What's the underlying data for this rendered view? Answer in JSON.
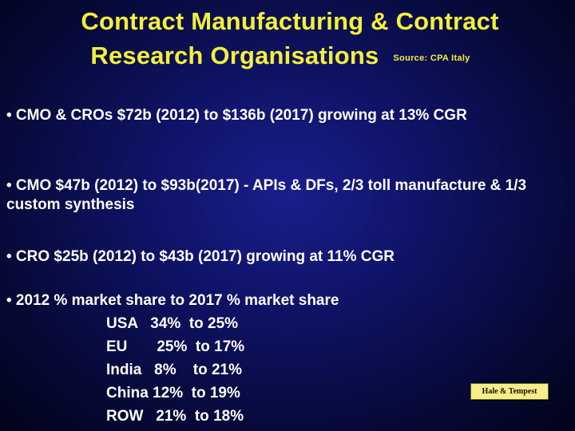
{
  "title": {
    "line1": "Contract Manufacturing & Contract",
    "line2": "Research Organisations",
    "source": "Source: CPA Italy"
  },
  "bullets": {
    "cmo_cro": "• CMO & CROs  $72b (2012) to $136b (2017) growing at 13% CGR",
    "cmo": "• CMO $47b (2012) to $93b(2017) - APIs & DFs,  2/3 toll manufacture & 1/3 custom synthesis",
    "cro": "• CRO $25b (2012) to $43b (2017) growing at 11% CGR",
    "share_heading": "• 2012  % market share to 2017 % market share"
  },
  "market_share": [
    "USA   34%  to 25%",
    "EU       25%  to 17%",
    "India   8%    to 21%",
    "China 12%  to 19%",
    "ROW   21%  to 18%"
  ],
  "badge": "Hale & Tempest",
  "colors": {
    "title": "#f2f03a",
    "body_text": "#ffffff",
    "background": "#0f1366",
    "badge_background": "#f7ee8a"
  }
}
